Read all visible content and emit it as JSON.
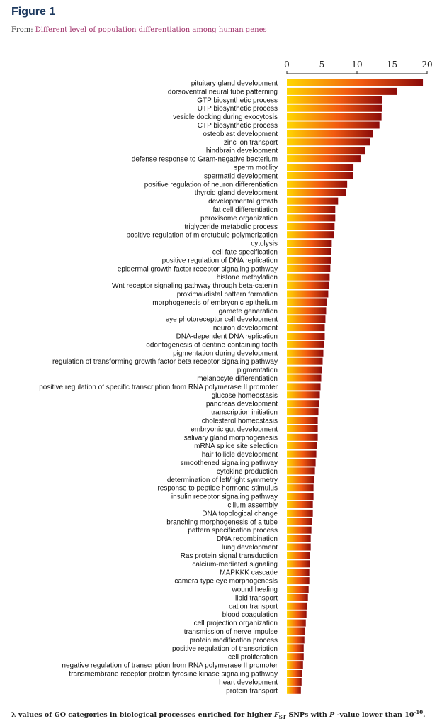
{
  "header": {
    "title": "Figure 1",
    "from_label": "From:",
    "from_link": "Different level of population differentiation among human genes"
  },
  "caption": {
    "pre": "λ values of GO categories in biological processes enriched for higher ",
    "f": "F",
    "sub": "ST",
    "mid": " SNPs with ",
    "p": "P",
    "post": " -value lower than 10",
    "sup": "-10",
    "end": "."
  },
  "colors": {
    "low": "#ffd800",
    "high": "#8a0a0a"
  },
  "chart_data": {
    "type": "bar",
    "orientation": "horizontal",
    "xlim": [
      0,
      20
    ],
    "xticks": [
      "0",
      "5",
      "10",
      "15",
      "20"
    ],
    "axis_position": "top",
    "grid": false,
    "categories": [
      "pituitary gland development",
      "dorsoventral neural tube patterning",
      "GTP biosynthetic process",
      "UTP biosynthetic process",
      "vesicle docking during exocytosis",
      "CTP biosynthetic process",
      "osteoblast development",
      "zinc ion transport",
      "hindbrain development",
      "defense response to Gram-negative bacterium",
      "sperm motility",
      "spermatid development",
      "positive regulation of neuron differentiation",
      "thyroid gland development",
      "developmental growth",
      "fat cell differentiation",
      "peroxisome organization",
      "triglyceride metabolic process",
      "positive regulation of microtubule polymerization",
      "cytolysis",
      "cell fate specification",
      "positive regulation of DNA replication",
      "epidermal growth factor receptor signaling pathway",
      "histone methylation",
      "Wnt receptor signaling pathway through beta-catenin",
      "proximal/distal pattern formation",
      "morphogenesis of embryonic epithelium",
      "gamete generation",
      "eye photoreceptor cell development",
      "neuron development",
      "DNA-dependent DNA replication",
      "odontogenesis of dentine-containing tooth",
      "pigmentation during development",
      "regulation of transforming growth factor beta receptor signaling pathway",
      "pigmentation",
      "melanocyte differentiation",
      "positive regulation of specific transcription from RNA polymerase II promoter",
      "glucose homeostasis",
      "pancreas development",
      "transcription initiation",
      "cholesterol homeostasis",
      "embryonic gut development",
      "salivary gland morphogenesis",
      "mRNA splice site selection",
      "hair follicle development",
      "smoothened signaling pathway",
      "cytokine production",
      "determination of left/right symmetry",
      "response to peptide hormone stimulus",
      "insulin receptor signaling pathway",
      "cilium assembly",
      "DNA topological change",
      "branching morphogenesis of a tube",
      "pattern specification process",
      "DNA recombination",
      "lung development",
      "Ras protein signal transduction",
      "calcium-mediated signaling",
      "MAPKKK cascade",
      "camera-type eye morphogenesis",
      "wound healing",
      "lipid transport",
      "cation transport",
      "blood coagulation",
      "cell projection organization",
      "transmission of nerve impulse",
      "protein modification process",
      "positive regulation of transcription",
      "cell proliferation",
      "negative regulation of transcription from RNA polymerase II promoter",
      "transmembrane receptor protein tyrosine kinase signaling pathway",
      "heart development",
      "protein transport"
    ],
    "values": [
      19.4,
      15.7,
      13.6,
      13.6,
      13.5,
      13.2,
      12.3,
      11.9,
      11.2,
      10.5,
      9.5,
      9.4,
      8.6,
      8.4,
      7.3,
      6.9,
      6.9,
      6.8,
      6.7,
      6.4,
      6.3,
      6.3,
      6.2,
      6.1,
      6.0,
      5.9,
      5.7,
      5.6,
      5.5,
      5.4,
      5.4,
      5.3,
      5.2,
      5.1,
      5.0,
      4.9,
      4.8,
      4.7,
      4.6,
      4.5,
      4.4,
      4.4,
      4.4,
      4.3,
      4.2,
      4.1,
      4.0,
      3.9,
      3.8,
      3.8,
      3.7,
      3.7,
      3.6,
      3.5,
      3.4,
      3.4,
      3.3,
      3.3,
      3.2,
      3.2,
      3.1,
      3.0,
      2.9,
      2.8,
      2.7,
      2.6,
      2.5,
      2.4,
      2.4,
      2.3,
      2.2,
      2.1,
      2.0
    ]
  }
}
